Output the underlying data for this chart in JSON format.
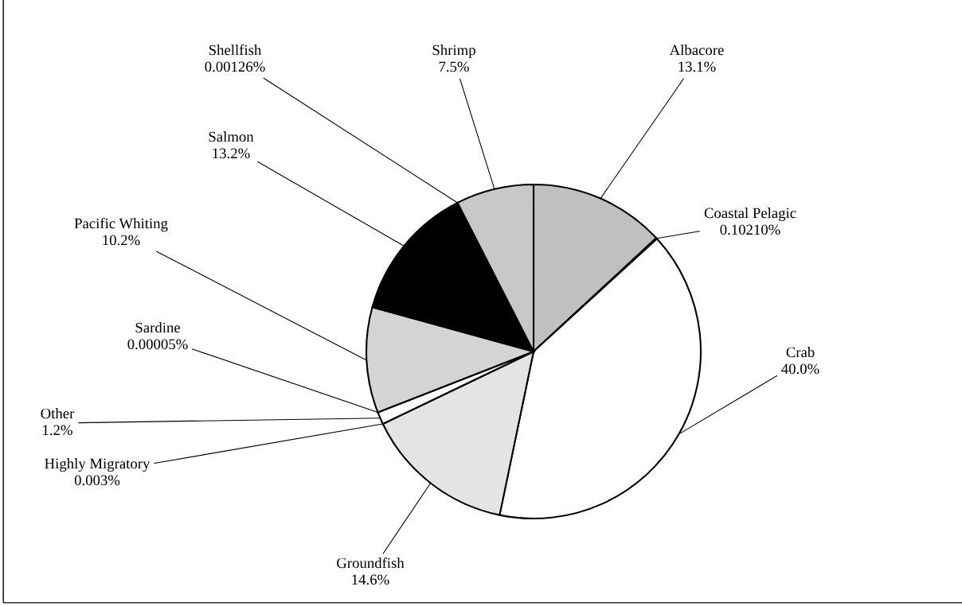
{
  "chart_data": {
    "type": "pie",
    "categories": [
      "Albacore",
      "Coastal Pelagic",
      "Crab",
      "Groundfish",
      "Highly Migratory",
      "Other",
      "Sardine",
      "Pacific Whiting",
      "Salmon",
      "Shellfish",
      "Shrimp"
    ],
    "values": [
      13.1,
      0.1021,
      40.0,
      14.6,
      0.003,
      1.2,
      5e-05,
      10.2,
      13.2,
      0.00126,
      7.5
    ],
    "value_labels": [
      "13.1%",
      "0.10210%",
      "40.0%",
      "14.6%",
      "0.003%",
      "1.2%",
      "0.00005%",
      "10.2%",
      "13.2%",
      "0.00126%",
      "7.5%"
    ],
    "colors": [
      "#c0c0c0",
      "#993333",
      "#ffffff",
      "#e4e4e4",
      "#808080",
      "#ffffff",
      "#a0a0a0",
      "#d4d4d4",
      "#000000",
      "#909090",
      "#c8c8c8"
    ],
    "legend": false
  }
}
